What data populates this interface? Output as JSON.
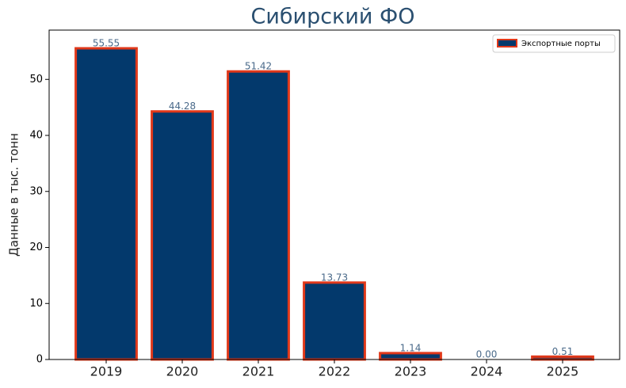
{
  "chart_data": {
    "type": "bar",
    "title": "Сибирский ФО",
    "y_label": "Данные в тыс. тонн",
    "categories": [
      "2019",
      "2020",
      "2021",
      "2022",
      "2023",
      "2024",
      "2025"
    ],
    "series": [
      {
        "name": "Экспортные порты",
        "color": "#03396c",
        "edge_color": "#e0381a",
        "values": [
          55.55,
          44.28,
          51.42,
          13.73,
          1.14,
          0,
          0.51
        ],
        "value_labels": [
          "55.55",
          "44.28",
          "51.42",
          "13.73",
          "1.14",
          "0.00",
          "0.51"
        ]
      }
    ],
    "ylim": [
      0,
      58.8
    ],
    "yticks": [
      0,
      10,
      20,
      30,
      40,
      50
    ],
    "legend": "upper right"
  }
}
